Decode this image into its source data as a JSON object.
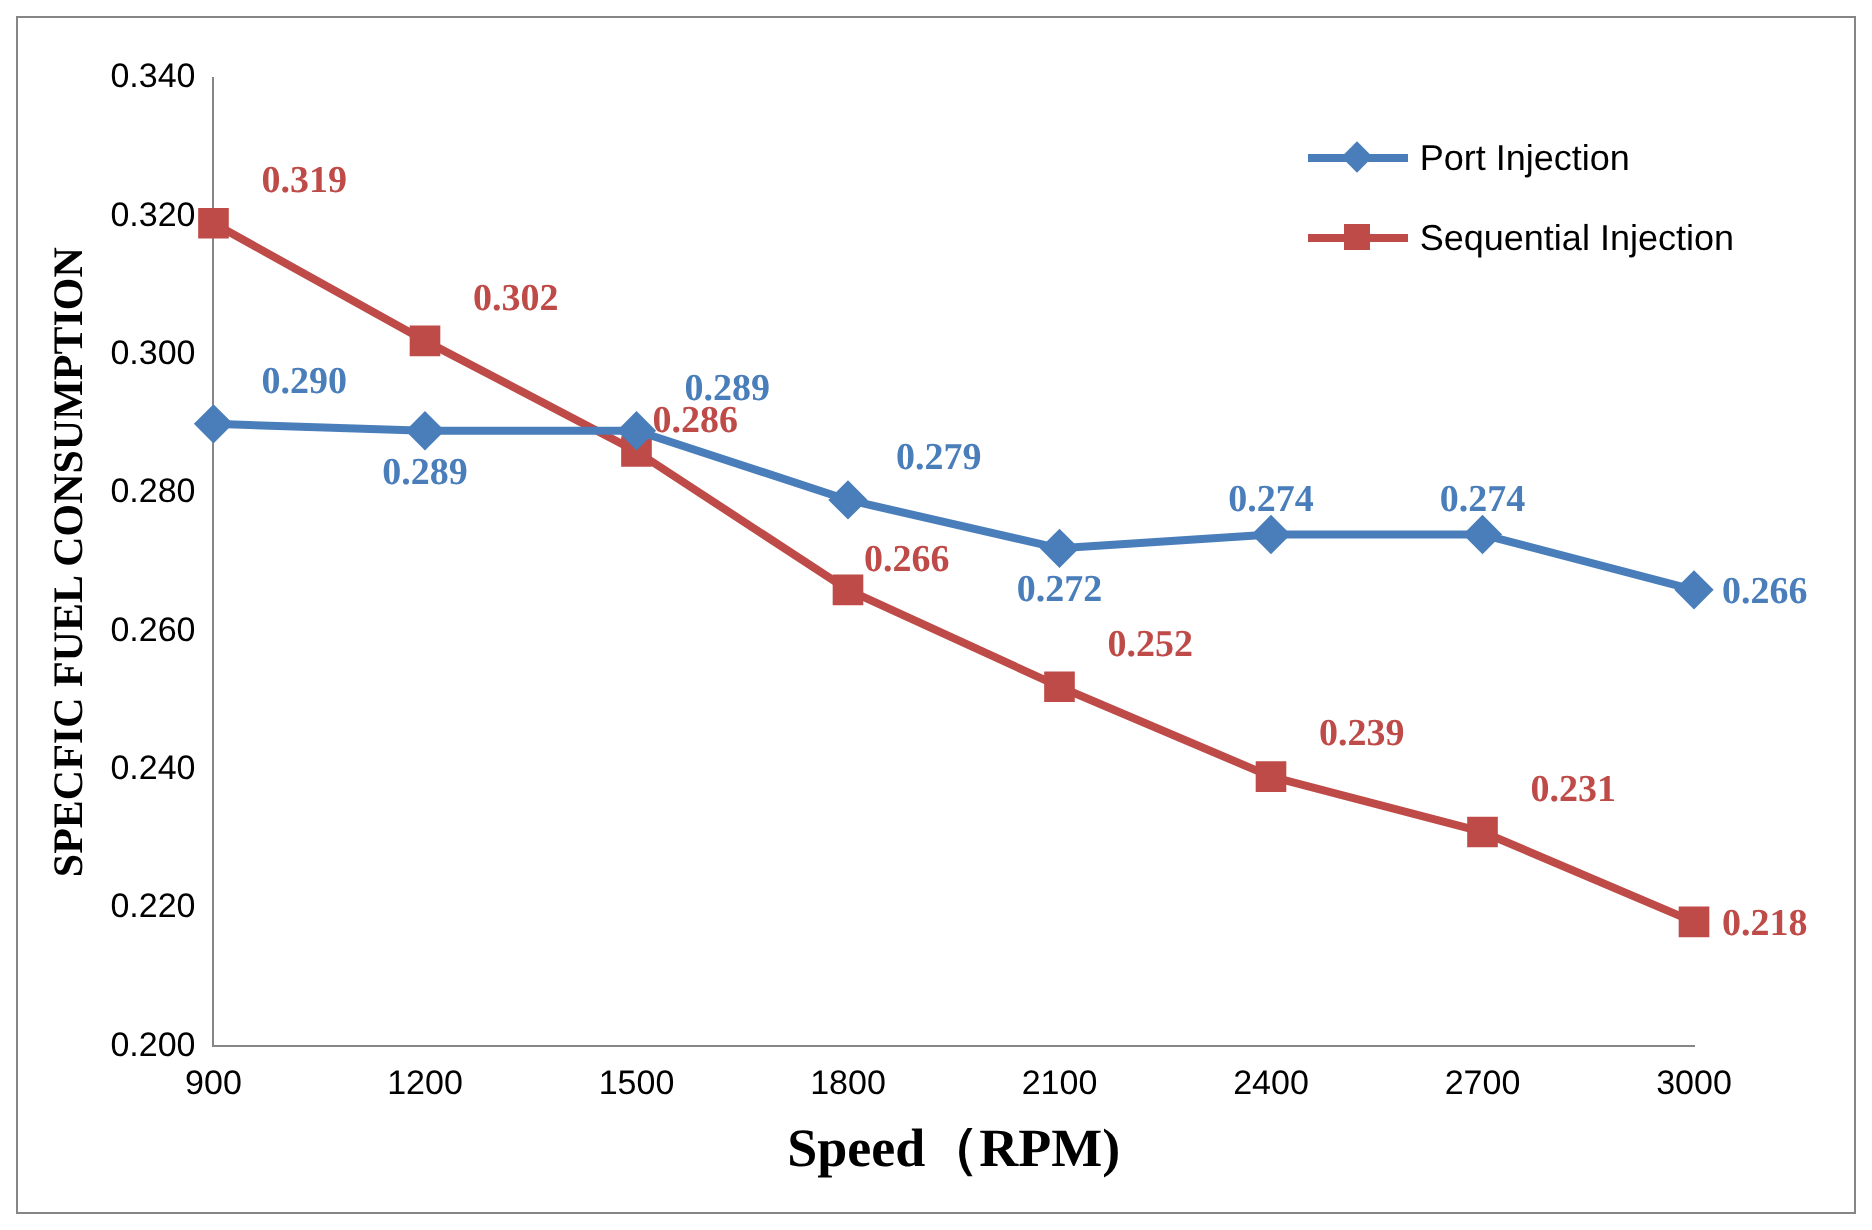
{
  "chart_data": {
    "type": "line",
    "xlabel": "Speed（RPM)",
    "ylabel": "SPECFIC FUEL CONSUMPTION",
    "categories": [
      "900",
      "1200",
      "1500",
      "1800",
      "2100",
      "2400",
      "2700",
      "3000"
    ],
    "series": [
      {
        "name": "Port Injection",
        "color": "#4a7ebb",
        "marker": "diamond",
        "values": [
          0.29,
          0.289,
          0.289,
          0.279,
          0.272,
          0.274,
          0.274,
          0.266
        ],
        "value_labels": [
          "0.290",
          "0.289",
          "0.289",
          "0.279",
          "0.272",
          "0.274",
          "0.274",
          "0.266"
        ]
      },
      {
        "name": "Sequential Injection",
        "color": "#be4b48",
        "marker": "square",
        "values": [
          0.319,
          0.302,
          0.286,
          0.266,
          0.252,
          0.239,
          0.231,
          0.218
        ],
        "value_labels": [
          "0.319",
          "0.302",
          "0.286",
          "0.266",
          "0.252",
          "0.239",
          "0.231",
          "0.218"
        ]
      }
    ],
    "ylim": [
      0.2,
      0.34
    ],
    "yticks": [
      {
        "value": 0.2,
        "label": "0.200"
      },
      {
        "value": 0.22,
        "label": "0.220"
      },
      {
        "value": 0.24,
        "label": "0.240"
      },
      {
        "value": 0.26,
        "label": "0.260"
      },
      {
        "value": 0.28,
        "label": "0.280"
      },
      {
        "value": 0.3,
        "label": "0.300"
      },
      {
        "value": 0.32,
        "label": "0.320"
      },
      {
        "value": 0.34,
        "label": "0.340"
      }
    ],
    "grid": false,
    "legend": "top right"
  }
}
